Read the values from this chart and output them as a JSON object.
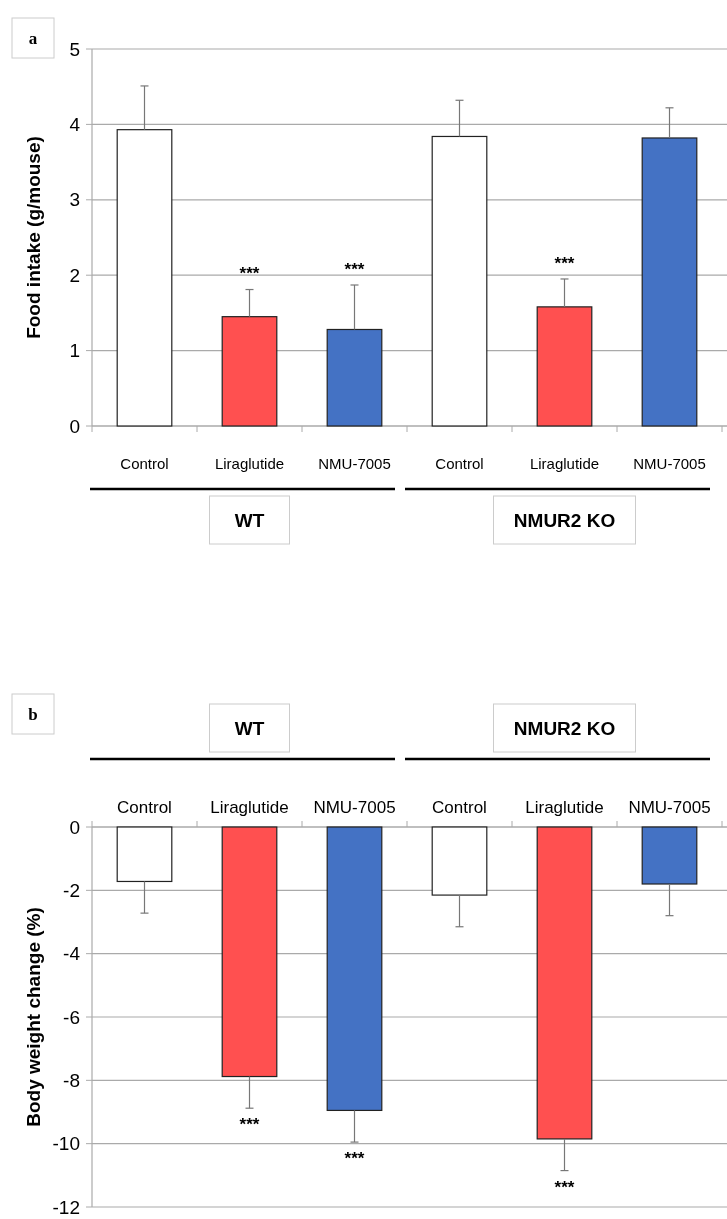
{
  "chart_data": [
    {
      "type": "bar",
      "title": "a",
      "ylabel": "Food intake  (g/mouse)",
      "categories": [
        "Control",
        "Liraglutide",
        "NMU-7005",
        "Control",
        "Liraglutide",
        "NMU-7005"
      ],
      "values": [
        3.93,
        1.45,
        1.28,
        3.84,
        1.58,
        3.82
      ],
      "errors": [
        0.58,
        0.36,
        0.59,
        0.48,
        0.37,
        0.4
      ],
      "colors": [
        "#ffffff",
        "#ff5050",
        "#4472c4",
        "#ffffff",
        "#ff5050",
        "#4472c4"
      ],
      "ylim": [
        0,
        5
      ],
      "yticks": [
        0,
        1,
        2,
        3,
        4,
        5
      ],
      "grid": "y",
      "value_labels": [
        null,
        "***",
        "***",
        null,
        "***",
        null
      ],
      "annotations": [
        "WT",
        "NMUR2 KO"
      ]
    },
    {
      "type": "bar",
      "title": "b",
      "ylabel": "Body weight  change (%)",
      "categories": [
        "Control",
        "Liraglutide",
        "NMU-7005",
        "Control",
        "Liraglutide",
        "NMU-7005"
      ],
      "values": [
        -1.72,
        -7.88,
        -8.95,
        -2.15,
        -9.85,
        -1.8
      ],
      "errors": [
        1.0,
        1.0,
        1.0,
        1.0,
        1.0,
        1.0
      ],
      "colors": [
        "#ffffff",
        "#ff5050",
        "#4472c4",
        "#ffffff",
        "#ff5050",
        "#4472c4"
      ],
      "ylim": [
        -12,
        0
      ],
      "yticks": [
        -12,
        -10,
        -8,
        -6,
        -4,
        -2,
        0
      ],
      "grid": "y",
      "value_labels": [
        null,
        "***",
        "***",
        null,
        "***",
        null
      ],
      "annotations": [
        "WT",
        "NMUR2 KO"
      ]
    }
  ]
}
